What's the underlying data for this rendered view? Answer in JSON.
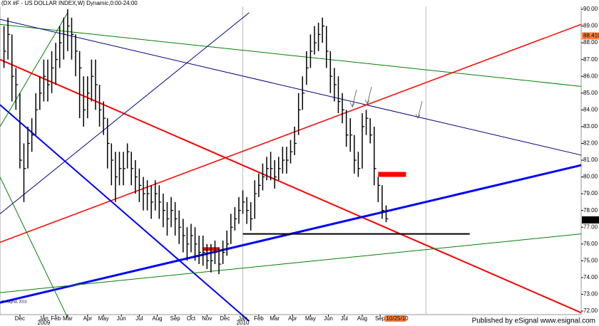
{
  "chart_data": {
    "type": "ohlc",
    "title": "(DX #F - US DOLLAR INDEX,W) Dynamic,0:00-24:00",
    "copyright": "© eSignal, 2010",
    "footer": "Published by eSignal   www.esignal.com",
    "date_badge": "10/25/10",
    "price_badge": {
      "value": 88.41,
      "label": "88.410"
    },
    "last_badge": {
      "value": 77.436,
      "label": "77.436"
    },
    "color": "#000000",
    "ylim": [
      72,
      90
    ],
    "xlim": [
      -1,
      145
    ],
    "yticks": [
      {
        "value": 90,
        "label": "90.00"
      },
      {
        "value": 89,
        "label": "89.00"
      },
      {
        "value": 88,
        "label": "88.00"
      },
      {
        "value": 87,
        "label": "87.00"
      },
      {
        "value": 86,
        "label": "86.00"
      },
      {
        "value": 85,
        "label": "85.00"
      },
      {
        "value": 84,
        "label": "84.00"
      },
      {
        "value": 83,
        "label": "83.00"
      },
      {
        "value": 82,
        "label": "82.00"
      },
      {
        "value": 81,
        "label": "81.00"
      },
      {
        "value": 80,
        "label": "80.00"
      },
      {
        "value": 79,
        "label": "79.00"
      },
      {
        "value": 78,
        "label": "78.00"
      },
      {
        "value": 77,
        "label": "77.00"
      },
      {
        "value": 76,
        "label": "76.00"
      },
      {
        "value": 75,
        "label": "75.00"
      },
      {
        "value": 74,
        "label": "74.00"
      },
      {
        "value": 73,
        "label": "73.00"
      },
      {
        "value": 72,
        "label": "72.00"
      }
    ],
    "xticks": [
      {
        "value": 4,
        "label": "Dec"
      },
      {
        "value": 10,
        "label": "Jan"
      },
      {
        "value": 13,
        "label": "Feb"
      },
      {
        "value": 16,
        "label": "Mar"
      },
      {
        "value": 21,
        "label": "Apr"
      },
      {
        "value": 25,
        "label": "May"
      },
      {
        "value": 29.5,
        "label": "Jun"
      },
      {
        "value": 34,
        "label": "Jul"
      },
      {
        "value": 38.5,
        "label": "Aug"
      },
      {
        "value": 43,
        "label": "Sep"
      },
      {
        "value": 47,
        "label": "Oct"
      },
      {
        "value": 51,
        "label": "Nov"
      },
      {
        "value": 55.5,
        "label": "Dec"
      },
      {
        "value": 60,
        "label": "Jan"
      },
      {
        "value": 64,
        "label": "Feb"
      },
      {
        "value": 68,
        "label": "Mar"
      },
      {
        "value": 72.5,
        "label": "Apr"
      },
      {
        "value": 77,
        "label": "May"
      },
      {
        "value": 81.5,
        "label": "Jun"
      },
      {
        "value": 85.5,
        "label": "Jul"
      },
      {
        "value": 90,
        "label": "Aug"
      },
      {
        "value": 94.5,
        "label": "Sep"
      }
    ],
    "year_ticks": [
      {
        "value": 10,
        "label": "2009"
      },
      {
        "value": 60,
        "label": "2010"
      }
    ],
    "vlines": [
      60,
      106
    ],
    "high": [
      89,
      89.5,
      88.5,
      86.5,
      85,
      82,
      83,
      83.5,
      85,
      86,
      87,
      87,
      87.5,
      88,
      89,
      89.5,
      90,
      89.5,
      88.5,
      87.5,
      86,
      86,
      87,
      87,
      85.5,
      84.5,
      83.5,
      82,
      81.5,
      81.5,
      81.5,
      82,
      81.5,
      81,
      80.5,
      80,
      79.8,
      79.5,
      79.8,
      79.5,
      79,
      78.5,
      78.8,
      78.5,
      78,
      77.5,
      77,
      77.2,
      77,
      76.5,
      76.5,
      76,
      76,
      76.2,
      75.8,
      76.2,
      76.8,
      77.8,
      78.2,
      78.8,
      79.2,
      78.8,
      78.5,
      79.8,
      80.2,
      80.8,
      81.2,
      81.5,
      81,
      81.2,
      81.8,
      81.8,
      82.2,
      83,
      85,
      86,
      87.5,
      88.5,
      89,
      89.2,
      89.5,
      89,
      87.5,
      86.5,
      86,
      85,
      84,
      83.5,
      82.5,
      81.5,
      83.8,
      84,
      83.5,
      83,
      80,
      79.5,
      78.3
    ],
    "low": [
      86.5,
      87,
      84.5,
      84,
      80.5,
      78.5,
      80.5,
      81.5,
      82.5,
      84,
      84.5,
      84.5,
      85,
      85.5,
      86.5,
      87,
      87.5,
      87,
      86,
      83.5,
      83,
      83.5,
      84.5,
      84,
      83,
      82.5,
      80.5,
      79.5,
      78.5,
      79.5,
      79.5,
      80.5,
      79.5,
      79,
      78.5,
      78,
      78,
      77.5,
      78,
      77.5,
      77,
      76.5,
      77,
      76.5,
      76,
      75.5,
      75,
      75.5,
      75,
      74.8,
      74.7,
      74.5,
      74.3,
      74.8,
      74.2,
      74.8,
      75.3,
      76,
      76.8,
      77.2,
      77.8,
      77.2,
      76.8,
      77.5,
      78.8,
      79.2,
      79.8,
      79.8,
      79.3,
      79.8,
      80.2,
      80.2,
      80.8,
      81.3,
      82.5,
      84,
      85.5,
      86.5,
      87.3,
      87.5,
      88,
      86.5,
      85,
      84.5,
      83.8,
      83.2,
      81.8,
      81.5,
      80.2,
      80,
      80.5,
      82.5,
      82,
      79.5,
      78.5,
      77.5,
      77.3
    ],
    "close": [
      87.5,
      88.5,
      86,
      85.5,
      81,
      80.5,
      82,
      82.5,
      84,
      85,
      86,
      85.5,
      86.5,
      87,
      88,
      88.5,
      89,
      88.5,
      87.5,
      86.5,
      84,
      85,
      86,
      85.5,
      84,
      83.5,
      82,
      81,
      80,
      80.5,
      80.5,
      81.5,
      80.5,
      80,
      79.5,
      79,
      79,
      78.5,
      79,
      78.5,
      78,
      77.5,
      78,
      77.5,
      77,
      76.5,
      76,
      76.5,
      76,
      75.5,
      75.5,
      75,
      75,
      75.5,
      74.8,
      75.5,
      76,
      77,
      77.5,
      78,
      78.5,
      78,
      77.5,
      79,
      79.5,
      80,
      80.5,
      80.5,
      80,
      80.5,
      81,
      81,
      81.5,
      82,
      84,
      85,
      86.5,
      87.5,
      88,
      88.5,
      89,
      87.5,
      86,
      85.5,
      84.5,
      84,
      82.5,
      82.5,
      81,
      80.5,
      83,
      83.5,
      82.5,
      80.5,
      79.5,
      78,
      77.5
    ],
    "trendlines": [
      {
        "color": "#008000",
        "width": 1,
        "x": [
          -1,
          145
        ],
        "y": [
          89.1,
          85.4
        ]
      },
      {
        "color": "#000080",
        "width": 1,
        "x": [
          -1,
          145
        ],
        "y": [
          89.4,
          81.3
        ]
      },
      {
        "color": "#ff0000",
        "width": 1.5,
        "x": [
          -1,
          145
        ],
        "y": [
          76.1,
          89.1
        ]
      },
      {
        "color": "#ff0000",
        "width": 2,
        "x": [
          -1,
          145
        ],
        "y": [
          87.0,
          71.9
        ]
      },
      {
        "color": "#0000ff",
        "width": 3,
        "x": [
          -1,
          145
        ],
        "y": [
          72.5,
          80.7
        ]
      },
      {
        "color": "#000080",
        "width": 1,
        "x": [
          -1,
          61.6
        ],
        "y": [
          77.8,
          89.8
        ]
      },
      {
        "color": "#0000ff",
        "width": 2,
        "x": [
          -1,
          61.6
        ],
        "y": [
          84.3,
          71.4
        ]
      },
      {
        "color": "#008000",
        "width": 1,
        "x": [
          -1,
          145
        ],
        "y": [
          73.1,
          76.6
        ]
      },
      {
        "color": "#008000",
        "width": 1,
        "x": [
          -1,
          16
        ],
        "y": [
          83.0,
          89.8
        ]
      },
      {
        "color": "#008000",
        "width": 1,
        "x": [
          -1,
          16
        ],
        "y": [
          80.0,
          71.6
        ]
      },
      {
        "color": "#000000",
        "width": 2,
        "x": [
          60,
          117
        ],
        "y": [
          76.6,
          76.6
        ]
      },
      {
        "color": "#ff0000",
        "width": 5,
        "x": [
          50,
          54
        ],
        "y": [
          75.7,
          75.7
        ]
      },
      {
        "color": "#ff0000",
        "width": 7,
        "x": [
          94,
          101
        ],
        "y": [
          80.15,
          80.15
        ]
      }
    ]
  }
}
